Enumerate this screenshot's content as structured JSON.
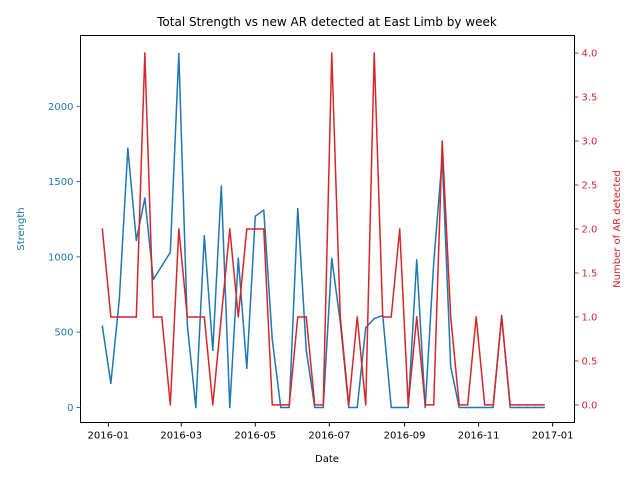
{
  "chart_data": {
    "type": "line",
    "title": "Total Strength vs new AR detected at East Limb by week",
    "xlabel": "Date",
    "ylabel_left": "Strength",
    "ylabel_right": "Number of AR detected",
    "x_ticks": [
      "2016-01",
      "2016-03",
      "2016-05",
      "2016-07",
      "2016-09",
      "2016-11",
      "2017-01"
    ],
    "y_left_ticks": [
      "0",
      "500",
      "1000",
      "1500",
      "2000"
    ],
    "y_right_ticks": [
      "0.0",
      "0.5",
      "1.0",
      "1.5",
      "2.0",
      "2.5",
      "3.0",
      "3.5",
      "4.0"
    ],
    "ylim_left": [
      -100,
      2470
    ],
    "ylim_right": [
      -0.2,
      4.2
    ],
    "xlim": [
      "2015-12-09",
      "2017-01-19"
    ],
    "colors": {
      "strength": "#1f77b4",
      "ar": "#d62728"
    },
    "series": [
      {
        "name": "Strength",
        "axis": "left",
        "points": [
          [
            "2015-12-27",
            540
          ],
          [
            "2016-01-03",
            160
          ],
          [
            "2016-01-10",
            720
          ],
          [
            "2016-01-17",
            1720
          ],
          [
            "2016-01-24",
            1110
          ],
          [
            "2016-01-31",
            1390
          ],
          [
            "2016-02-07",
            850
          ],
          [
            "2016-02-14",
            940
          ],
          [
            "2016-02-21",
            1030
          ],
          [
            "2016-02-28",
            2350
          ],
          [
            "2016-03-06",
            550
          ],
          [
            "2016-03-13",
            0
          ],
          [
            "2016-03-20",
            1140
          ],
          [
            "2016-03-27",
            380
          ],
          [
            "2016-04-03",
            1470
          ],
          [
            "2016-04-10",
            0
          ],
          [
            "2016-04-17",
            990
          ],
          [
            "2016-04-24",
            260
          ],
          [
            "2016-05-01",
            1270
          ],
          [
            "2016-05-08",
            1310
          ],
          [
            "2016-05-15",
            450
          ],
          [
            "2016-05-22",
            0
          ],
          [
            "2016-05-29",
            0
          ],
          [
            "2016-06-05",
            1320
          ],
          [
            "2016-06-12",
            380
          ],
          [
            "2016-06-19",
            0
          ],
          [
            "2016-06-26",
            0
          ],
          [
            "2016-07-03",
            990
          ],
          [
            "2016-07-10",
            570
          ],
          [
            "2016-07-17",
            0
          ],
          [
            "2016-07-24",
            0
          ],
          [
            "2016-07-31",
            530
          ],
          [
            "2016-08-07",
            590
          ],
          [
            "2016-08-14",
            610
          ],
          [
            "2016-08-21",
            0
          ],
          [
            "2016-08-28",
            0
          ],
          [
            "2016-09-04",
            0
          ],
          [
            "2016-09-11",
            980
          ],
          [
            "2016-09-18",
            0
          ],
          [
            "2016-09-25",
            960
          ],
          [
            "2016-10-02",
            1660
          ],
          [
            "2016-10-09",
            270
          ],
          [
            "2016-10-16",
            0
          ],
          [
            "2016-10-23",
            0
          ],
          [
            "2016-10-30",
            0
          ],
          [
            "2016-11-06",
            0
          ],
          [
            "2016-11-13",
            0
          ],
          [
            "2016-11-20",
            610
          ],
          [
            "2016-11-27",
            0
          ],
          [
            "2016-12-04",
            0
          ],
          [
            "2016-12-11",
            0
          ],
          [
            "2016-12-18",
            0
          ],
          [
            "2016-12-25",
            0
          ]
        ]
      },
      {
        "name": "Number of AR detected",
        "axis": "right",
        "points": [
          [
            "2015-12-27",
            2
          ],
          [
            "2016-01-03",
            1
          ],
          [
            "2016-01-10",
            1
          ],
          [
            "2016-01-17",
            1
          ],
          [
            "2016-01-24",
            1
          ],
          [
            "2016-01-31",
            4
          ],
          [
            "2016-02-07",
            1
          ],
          [
            "2016-02-14",
            1
          ],
          [
            "2016-02-21",
            0
          ],
          [
            "2016-02-28",
            2
          ],
          [
            "2016-03-06",
            1
          ],
          [
            "2016-03-13",
            1
          ],
          [
            "2016-03-20",
            1
          ],
          [
            "2016-03-27",
            0
          ],
          [
            "2016-04-03",
            1
          ],
          [
            "2016-04-10",
            2
          ],
          [
            "2016-04-17",
            1
          ],
          [
            "2016-04-24",
            2
          ],
          [
            "2016-05-01",
            2
          ],
          [
            "2016-05-08",
            2
          ],
          [
            "2016-05-15",
            0
          ],
          [
            "2016-05-22",
            0
          ],
          [
            "2016-05-29",
            0
          ],
          [
            "2016-06-05",
            1
          ],
          [
            "2016-06-12",
            1
          ],
          [
            "2016-06-19",
            0
          ],
          [
            "2016-06-26",
            0
          ],
          [
            "2016-07-03",
            4
          ],
          [
            "2016-07-10",
            1
          ],
          [
            "2016-07-17",
            0
          ],
          [
            "2016-07-24",
            1
          ],
          [
            "2016-07-31",
            0
          ],
          [
            "2016-08-07",
            4
          ],
          [
            "2016-08-14",
            1
          ],
          [
            "2016-08-21",
            1
          ],
          [
            "2016-08-28",
            2
          ],
          [
            "2016-09-04",
            0
          ],
          [
            "2016-09-11",
            1
          ],
          [
            "2016-09-18",
            0
          ],
          [
            "2016-09-25",
            0
          ],
          [
            "2016-10-02",
            3
          ],
          [
            "2016-10-09",
            1
          ],
          [
            "2016-10-16",
            0
          ],
          [
            "2016-10-23",
            0
          ],
          [
            "2016-10-30",
            1
          ],
          [
            "2016-11-06",
            0
          ],
          [
            "2016-11-13",
            0
          ],
          [
            "2016-11-20",
            1
          ],
          [
            "2016-11-27",
            0
          ],
          [
            "2016-12-04",
            0
          ],
          [
            "2016-12-11",
            0
          ],
          [
            "2016-12-18",
            0
          ],
          [
            "2016-12-25",
            0
          ]
        ]
      }
    ]
  }
}
